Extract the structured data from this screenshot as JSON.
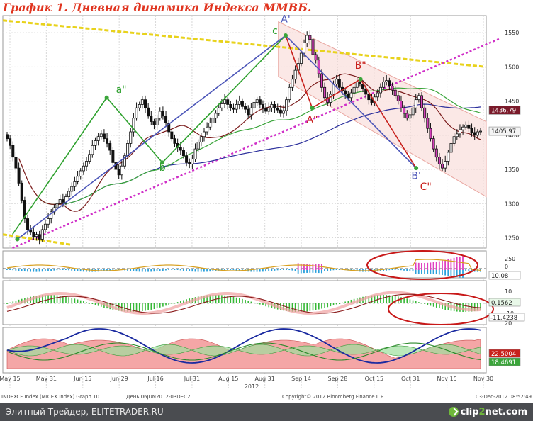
{
  "title": "График 1.   Дневная динамика Индекса ММВБ.",
  "colors": {
    "up": "#111111",
    "down": "#111111",
    "ma_blue": "#2b2f9c",
    "ma_green": "#3aa53a",
    "ma_maroon": "#7a1a1a",
    "wave_green": "#2ea12e",
    "wave_blue": "#4b55b8",
    "wave_red": "#c8201c",
    "channel_yellow": "#e8d21c",
    "channel_magenta": "#d030c8",
    "channel_fill": "#f7d6d2",
    "ellipse_red": "#c81818",
    "label_red": "#c8201c",
    "label_dark": "#1a1a1a",
    "histo_blue": "#2aa0dc",
    "histo_pink": "#e040c0",
    "histo_green": "#35b835",
    "histo_red": "#f08080"
  },
  "chart_data": {
    "type": "candlestick",
    "x_dates": [
      "May 15",
      "May 31",
      "Jun 15",
      "Jun 29",
      "Jul 16",
      "Jul 31",
      "Aug 15",
      "Aug 31",
      "Sep 14",
      "Sep 28",
      "Oct 15",
      "Oct 31",
      "Nov 15",
      "Nov 30"
    ],
    "year_label": "2012",
    "y_ticks": [
      1250,
      1300,
      1350,
      1400,
      1450,
      1500,
      1550
    ],
    "ylim": [
      1235,
      1575
    ],
    "price_labels": [
      {
        "value": 1436.79,
        "text": "1436.79",
        "style": "dark"
      },
      {
        "value": 1405.97,
        "text": "1405.97",
        "style": "light"
      }
    ],
    "closes": [
      1395,
      1385,
      1368,
      1352,
      1330,
      1305,
      1278,
      1262,
      1258,
      1252,
      1255,
      1248,
      1262,
      1270,
      1278,
      1288,
      1294,
      1300,
      1306,
      1302,
      1310,
      1318,
      1325,
      1332,
      1340,
      1348,
      1355,
      1362,
      1372,
      1385,
      1392,
      1398,
      1402,
      1395,
      1388,
      1378,
      1360,
      1350,
      1342,
      1355,
      1370,
      1388,
      1405,
      1425,
      1440,
      1445,
      1452,
      1440,
      1428,
      1420,
      1415,
      1425,
      1435,
      1428,
      1418,
      1405,
      1395,
      1388,
      1382,
      1378,
      1370,
      1360,
      1358,
      1365,
      1380,
      1390,
      1398,
      1405,
      1412,
      1418,
      1425,
      1432,
      1440,
      1446,
      1452,
      1445,
      1440,
      1438,
      1445,
      1450,
      1442,
      1438,
      1430,
      1440,
      1448,
      1452,
      1445,
      1440,
      1435,
      1440,
      1445,
      1440,
      1437,
      1432,
      1436,
      1452,
      1470,
      1482,
      1495,
      1505,
      1520,
      1535,
      1546,
      1540,
      1518,
      1510,
      1490,
      1470,
      1455,
      1448,
      1460,
      1475,
      1482,
      1470,
      1465,
      1460,
      1455,
      1462,
      1470,
      1478,
      1475,
      1468,
      1460,
      1452,
      1448,
      1456,
      1462,
      1470,
      1478,
      1480,
      1472,
      1466,
      1458,
      1450,
      1440,
      1432,
      1425,
      1430,
      1440,
      1452,
      1458,
      1440,
      1425,
      1410,
      1395,
      1380,
      1368,
      1358,
      1352,
      1362,
      1375,
      1388,
      1398,
      1402,
      1408,
      1412,
      1415,
      1410,
      1404,
      1400,
      1405,
      1406
    ],
    "waves": [
      {
        "label": "a\"",
        "points": [
          [
            0.02,
            1255
          ],
          [
            0.215,
            1455
          ]
        ],
        "color": "green"
      },
      {
        "label": "b\"",
        "points": [
          [
            0.215,
            1455
          ],
          [
            0.33,
            1360
          ]
        ],
        "color": "green"
      },
      {
        "label": "c",
        "points": [
          [
            0.33,
            1360
          ],
          [
            0.585,
            1546
          ]
        ],
        "color": "green"
      },
      {
        "label": "A'",
        "points": [
          [
            0.03,
            1248
          ],
          [
            0.585,
            1546
          ]
        ],
        "color": "blue"
      },
      {
        "label": "B'",
        "points": [
          [
            0.585,
            1546
          ],
          [
            0.855,
            1352
          ]
        ],
        "color": "blue"
      },
      {
        "label": "A\"",
        "points": [
          [
            0.585,
            1546
          ],
          [
            0.64,
            1440
          ]
        ],
        "color": "red"
      },
      {
        "label": "B\"",
        "points": [
          [
            0.64,
            1440
          ],
          [
            0.74,
            1482
          ]
        ],
        "color": "red"
      },
      {
        "label": "C\"",
        "points": [
          [
            0.74,
            1482
          ],
          [
            0.855,
            1352
          ]
        ],
        "color": "red"
      }
    ],
    "wave_labels": [
      {
        "text": "A'",
        "color": "blue",
        "x": 0.585,
        "y": 1565
      },
      {
        "text": "c",
        "color": "green",
        "x": 0.563,
        "y": 1548
      },
      {
        "text": "a\"",
        "color": "green",
        "x": 0.245,
        "y": 1462
      },
      {
        "text": "b\"",
        "color": "green",
        "x": 0.335,
        "y": 1348
      },
      {
        "text": "A\"",
        "color": "red",
        "x": 0.64,
        "y": 1418
      },
      {
        "text": "B\"",
        "color": "red",
        "x": 0.74,
        "y": 1497
      },
      {
        "text": "B'",
        "color": "blue",
        "x": 0.855,
        "y": 1336
      },
      {
        "text": "C\"",
        "color": "red",
        "x": 0.875,
        "y": 1320
      }
    ],
    "indicators": [
      {
        "name": "panel1",
        "label": "10.08",
        "ticks": [
          "250",
          "0"
        ]
      },
      {
        "name": "panel2",
        "label1": "0.1562",
        "label2": "-11.4238",
        "ticks": [
          "10",
          "0",
          "-10",
          "20"
        ]
      },
      {
        "name": "panel3",
        "label1": "22.5004",
        "label2": "18.4691"
      }
    ]
  },
  "footer": {
    "left": "INDEXCF Index (MICEX Index) Graph 10",
    "mid": "День 06JUN2012-03DEC2",
    "copyright": "Copyright© 2012 Bloomberg Finance L.P.",
    "right": "03-Dec-2012 08:52:49"
  },
  "watermark": "Элитный Трейдер, ELITETRADER.RU",
  "logo": {
    "part1": "clip",
    "part2": "2",
    "part3": "net",
    "part4": ".com"
  }
}
